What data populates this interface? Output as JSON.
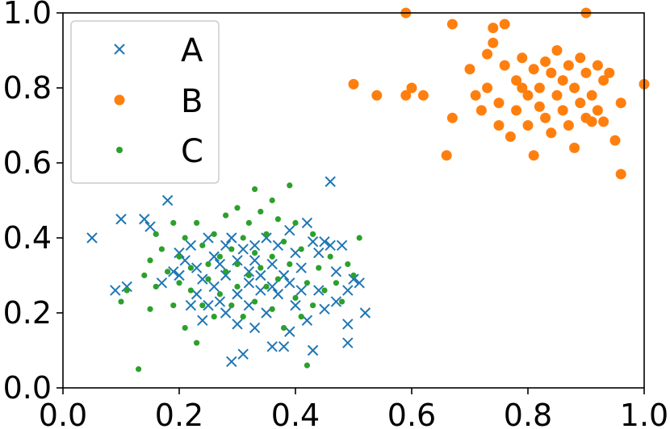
{
  "chart_data": {
    "type": "scatter",
    "title": "",
    "xlabel": "",
    "ylabel": "",
    "xlim": [
      0.0,
      1.0
    ],
    "ylim": [
      0.0,
      1.0
    ],
    "grid": false,
    "legend": {
      "placement": "top-left"
    },
    "x_ticks": [
      0.0,
      0.2,
      0.4,
      0.6,
      0.8,
      1.0
    ],
    "y_ticks": [
      0.0,
      0.2,
      0.4,
      0.6,
      0.8,
      1.0
    ],
    "x_tick_labels": [
      "0.0",
      "0.2",
      "0.4",
      "0.6",
      "0.8",
      "1.0"
    ],
    "y_tick_labels": [
      "0.0",
      "0.2",
      "0.4",
      "0.6",
      "0.8",
      "1.0"
    ],
    "series": [
      {
        "name": "A",
        "marker": "x",
        "color": "#1f77b4",
        "points": [
          [
            0.05,
            0.4
          ],
          [
            0.09,
            0.26
          ],
          [
            0.1,
            0.45
          ],
          [
            0.11,
            0.27
          ],
          [
            0.14,
            0.45
          ],
          [
            0.15,
            0.43
          ],
          [
            0.17,
            0.28
          ],
          [
            0.18,
            0.5
          ],
          [
            0.19,
            0.31
          ],
          [
            0.2,
            0.3
          ],
          [
            0.2,
            0.36
          ],
          [
            0.21,
            0.34
          ],
          [
            0.22,
            0.38
          ],
          [
            0.22,
            0.22
          ],
          [
            0.23,
            0.25
          ],
          [
            0.23,
            0.32
          ],
          [
            0.24,
            0.18
          ],
          [
            0.24,
            0.29
          ],
          [
            0.25,
            0.4
          ],
          [
            0.25,
            0.22
          ],
          [
            0.26,
            0.35
          ],
          [
            0.26,
            0.27
          ],
          [
            0.27,
            0.33
          ],
          [
            0.27,
            0.23
          ],
          [
            0.28,
            0.38
          ],
          [
            0.28,
            0.3
          ],
          [
            0.28,
            0.2
          ],
          [
            0.29,
            0.4
          ],
          [
            0.29,
            0.07
          ],
          [
            0.3,
            0.34
          ],
          [
            0.3,
            0.25
          ],
          [
            0.3,
            0.17
          ],
          [
            0.31,
            0.09
          ],
          [
            0.31,
            0.37
          ],
          [
            0.32,
            0.31
          ],
          [
            0.32,
            0.28
          ],
          [
            0.32,
            0.22
          ],
          [
            0.33,
            0.38
          ],
          [
            0.33,
            0.34
          ],
          [
            0.33,
            0.16
          ],
          [
            0.34,
            0.3
          ],
          [
            0.34,
            0.26
          ],
          [
            0.35,
            0.4
          ],
          [
            0.35,
            0.2
          ],
          [
            0.36,
            0.33
          ],
          [
            0.36,
            0.27
          ],
          [
            0.36,
            0.11
          ],
          [
            0.37,
            0.38
          ],
          [
            0.37,
            0.25
          ],
          [
            0.38,
            0.3
          ],
          [
            0.38,
            0.11
          ],
          [
            0.39,
            0.42
          ],
          [
            0.39,
            0.28
          ],
          [
            0.39,
            0.15
          ],
          [
            0.4,
            0.36
          ],
          [
            0.4,
            0.22
          ],
          [
            0.41,
            0.32
          ],
          [
            0.41,
            0.26
          ],
          [
            0.42,
            0.44
          ],
          [
            0.42,
            0.18
          ],
          [
            0.43,
            0.39
          ],
          [
            0.43,
            0.1
          ],
          [
            0.44,
            0.36
          ],
          [
            0.44,
            0.26
          ],
          [
            0.45,
            0.39
          ],
          [
            0.45,
            0.21
          ],
          [
            0.46,
            0.38
          ],
          [
            0.46,
            0.55
          ],
          [
            0.47,
            0.31
          ],
          [
            0.47,
            0.23
          ],
          [
            0.48,
            0.38
          ],
          [
            0.49,
            0.26
          ],
          [
            0.49,
            0.17
          ],
          [
            0.49,
            0.12
          ],
          [
            0.5,
            0.29
          ],
          [
            0.51,
            0.28
          ],
          [
            0.52,
            0.2
          ]
        ]
      },
      {
        "name": "B",
        "marker": "o",
        "color": "#ff7f0e",
        "points": [
          [
            0.5,
            0.81
          ],
          [
            0.54,
            0.78
          ],
          [
            0.59,
            1.0
          ],
          [
            0.59,
            0.78
          ],
          [
            0.6,
            0.8
          ],
          [
            0.62,
            0.78
          ],
          [
            0.66,
            0.62
          ],
          [
            0.67,
            0.97
          ],
          [
            0.67,
            0.72
          ],
          [
            0.7,
            0.85
          ],
          [
            0.71,
            0.78
          ],
          [
            0.72,
            0.74
          ],
          [
            0.73,
            0.89
          ],
          [
            0.73,
            0.8
          ],
          [
            0.74,
            0.96
          ],
          [
            0.74,
            0.92
          ],
          [
            0.75,
            0.76
          ],
          [
            0.75,
            0.7
          ],
          [
            0.76,
            0.97
          ],
          [
            0.76,
            0.86
          ],
          [
            0.77,
            0.67
          ],
          [
            0.78,
            0.82
          ],
          [
            0.78,
            0.74
          ],
          [
            0.79,
            0.88
          ],
          [
            0.79,
            0.8
          ],
          [
            0.8,
            0.78
          ],
          [
            0.8,
            0.7
          ],
          [
            0.81,
            0.85
          ],
          [
            0.81,
            0.62
          ],
          [
            0.82,
            0.8
          ],
          [
            0.82,
            0.75
          ],
          [
            0.83,
            0.87
          ],
          [
            0.83,
            0.72
          ],
          [
            0.84,
            0.84
          ],
          [
            0.84,
            0.68
          ],
          [
            0.85,
            0.9
          ],
          [
            0.85,
            0.78
          ],
          [
            0.86,
            0.82
          ],
          [
            0.86,
            0.74
          ],
          [
            0.87,
            0.86
          ],
          [
            0.87,
            0.7
          ],
          [
            0.88,
            0.8
          ],
          [
            0.88,
            0.64
          ],
          [
            0.89,
            0.88
          ],
          [
            0.89,
            0.76
          ],
          [
            0.9,
            0.84
          ],
          [
            0.9,
            0.72
          ],
          [
            0.9,
            1.0
          ],
          [
            0.91,
            0.78
          ],
          [
            0.91,
            0.71
          ],
          [
            0.92,
            0.86
          ],
          [
            0.92,
            0.74
          ],
          [
            0.93,
            0.82
          ],
          [
            0.93,
            0.71
          ],
          [
            0.94,
            0.84
          ],
          [
            0.95,
            0.66
          ],
          [
            0.96,
            0.76
          ],
          [
            0.96,
            0.57
          ],
          [
            1.0,
            0.81
          ]
        ]
      },
      {
        "name": "C",
        "marker": ".",
        "color": "#2ca02c",
        "points": [
          [
            0.1,
            0.23
          ],
          [
            0.11,
            0.26
          ],
          [
            0.13,
            0.05
          ],
          [
            0.14,
            0.3
          ],
          [
            0.15,
            0.21
          ],
          [
            0.15,
            0.34
          ],
          [
            0.16,
            0.41
          ],
          [
            0.16,
            0.27
          ],
          [
            0.17,
            0.37
          ],
          [
            0.18,
            0.31
          ],
          [
            0.19,
            0.44
          ],
          [
            0.19,
            0.22
          ],
          [
            0.2,
            0.35
          ],
          [
            0.2,
            0.28
          ],
          [
            0.21,
            0.4
          ],
          [
            0.21,
            0.16
          ],
          [
            0.22,
            0.32
          ],
          [
            0.22,
            0.26
          ],
          [
            0.23,
            0.44
          ],
          [
            0.23,
            0.12
          ],
          [
            0.24,
            0.38
          ],
          [
            0.24,
            0.22
          ],
          [
            0.25,
            0.33
          ],
          [
            0.25,
            0.29
          ],
          [
            0.26,
            0.41
          ],
          [
            0.26,
            0.19
          ],
          [
            0.27,
            0.35
          ],
          [
            0.27,
            0.25
          ],
          [
            0.28,
            0.46
          ],
          [
            0.28,
            0.31
          ],
          [
            0.29,
            0.37
          ],
          [
            0.29,
            0.22
          ],
          [
            0.3,
            0.48
          ],
          [
            0.3,
            0.33
          ],
          [
            0.3,
            0.27
          ],
          [
            0.31,
            0.4
          ],
          [
            0.31,
            0.19
          ],
          [
            0.32,
            0.44
          ],
          [
            0.32,
            0.3
          ],
          [
            0.33,
            0.53
          ],
          [
            0.33,
            0.36
          ],
          [
            0.33,
            0.23
          ],
          [
            0.34,
            0.47
          ],
          [
            0.34,
            0.32
          ],
          [
            0.35,
            0.41
          ],
          [
            0.35,
            0.27
          ],
          [
            0.36,
            0.5
          ],
          [
            0.36,
            0.35
          ],
          [
            0.36,
            0.21
          ],
          [
            0.37,
            0.45
          ],
          [
            0.37,
            0.29
          ],
          [
            0.38,
            0.39
          ],
          [
            0.38,
            0.16
          ],
          [
            0.39,
            0.54
          ],
          [
            0.39,
            0.33
          ],
          [
            0.4,
            0.44
          ],
          [
            0.4,
            0.24
          ],
          [
            0.41,
            0.37
          ],
          [
            0.41,
            0.19
          ],
          [
            0.42,
            0.28
          ],
          [
            0.42,
            0.06
          ],
          [
            0.43,
            0.41
          ],
          [
            0.43,
            0.22
          ],
          [
            0.44,
            0.32
          ],
          [
            0.45,
            0.26
          ],
          [
            0.46,
            0.35
          ],
          [
            0.47,
            0.28
          ],
          [
            0.48,
            0.23
          ],
          [
            0.49,
            0.33
          ],
          [
            0.5,
            0.3
          ],
          [
            0.51,
            0.4
          ]
        ]
      }
    ]
  }
}
